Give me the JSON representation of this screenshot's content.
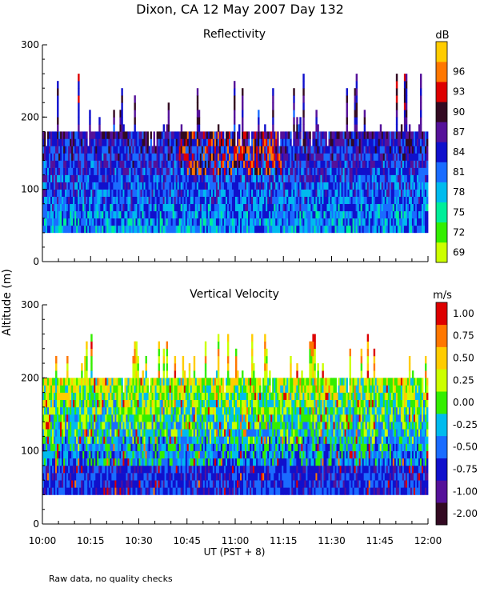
{
  "title": "Dixon, CA 12 May 2007  Day 132",
  "footnote": "Raw data, no quality checks",
  "ylabel": "Altitude (m)",
  "chart_data": [
    {
      "type": "heatmap",
      "title": "Reflectivity",
      "colorbar_unit": "dB",
      "colorbar_ticks": [
        "69",
        "72",
        "75",
        "78",
        "81",
        "84",
        "87",
        "90",
        "93",
        "96"
      ],
      "colorbar_colors": [
        "#ccff00",
        "#33ee00",
        "#00ee99",
        "#00bbee",
        "#1a6cff",
        "#1010cc",
        "#551199",
        "#330a22",
        "#dd0000",
        "#ff7700",
        "#ffcc00"
      ],
      "ylim": [
        0,
        300
      ],
      "yticks": [
        "0",
        "100",
        "200",
        "300"
      ],
      "data_range_m": [
        40,
        180
      ],
      "max_echo_top_m": 260,
      "dominant_levels": [
        "78",
        "81",
        "84"
      ],
      "high_core": "90-96 dB near 120-170 m, 10:50-11:25"
    },
    {
      "type": "heatmap",
      "title": "Vertical Velocity",
      "colorbar_unit": "m/s",
      "colorbar_ticks": [
        "-2.00",
        "-1.00",
        "-0.75",
        "-0.50",
        "-0.25",
        "0.00",
        "0.25",
        "0.50",
        "0.75",
        "1.00"
      ],
      "colorbar_colors": [
        "#330a22",
        "#551199",
        "#1010cc",
        "#1a6cff",
        "#00bbee",
        "#33ee00",
        "#ccff00",
        "#ffcc00",
        "#ff7700",
        "#dd0000"
      ],
      "ylim": [
        0,
        300
      ],
      "yticks": [
        "0",
        "100",
        "200",
        "300"
      ],
      "data_range_m": [
        40,
        200
      ],
      "max_echo_top_m": 260,
      "near_ground_mode": "-1.00 to -2.00 m/s below 80 m",
      "upper_mode": "0.00 to 0.50 m/s above 100 m"
    }
  ],
  "xaxis": {
    "label": "UT  (PST + 8)",
    "range": [
      "10:00",
      "12:00"
    ],
    "tick_labels": [
      "10:00",
      "10:15",
      "10:30",
      "10:45",
      "11:00",
      "11:15",
      "11:30",
      "11:45",
      "12:00"
    ]
  }
}
